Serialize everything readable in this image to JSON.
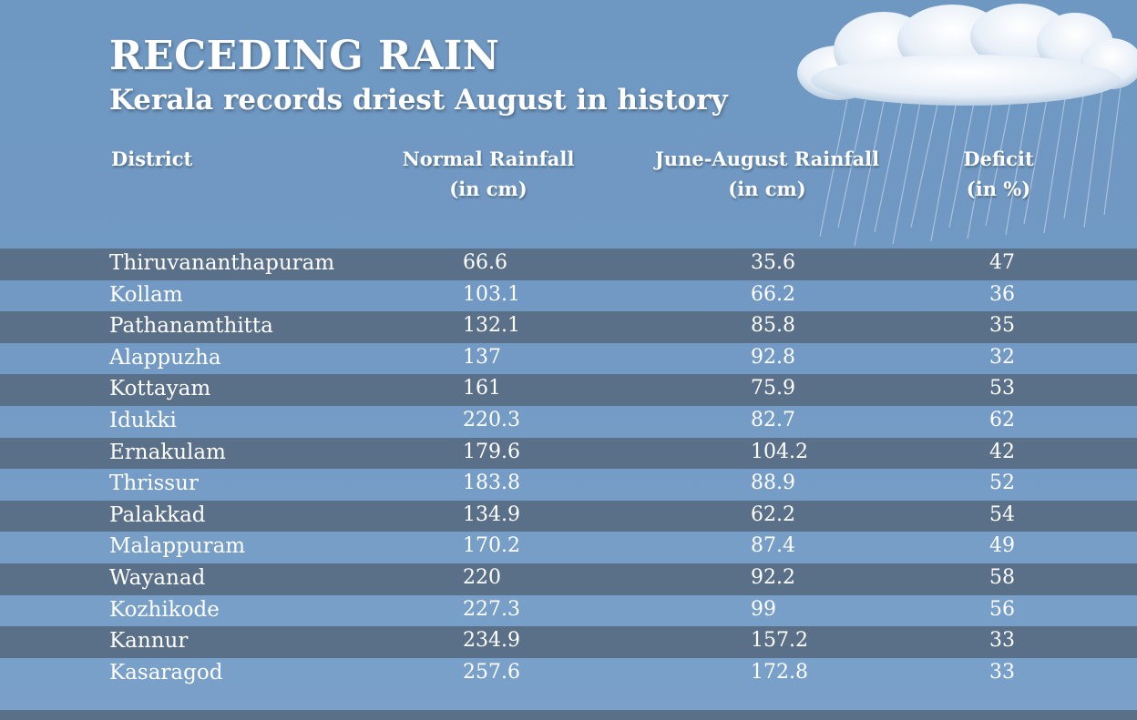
{
  "header": {
    "title": "RECEDING RAIN",
    "subtitle": "Kerala records driest August in history"
  },
  "columns": {
    "district": "District",
    "normal_line1": "Normal Rainfall",
    "normal_line2": "(in cm)",
    "jun_line1": "June-August Rainfall",
    "jun_line2": "(in cm)",
    "deficit_line1": "Deficit",
    "deficit_line2": "(in %)"
  },
  "colors": {
    "background": "#6f98c2",
    "dark_stripe": "#5a7088",
    "text": "#ffffff"
  },
  "chart_data": {
    "type": "table",
    "title": "RECEDING RAIN",
    "subtitle": "Kerala records driest August in history",
    "columns": [
      "District",
      "Normal Rainfall (in cm)",
      "June-August Rainfall (in cm)",
      "Deficit (in %)"
    ],
    "rows": [
      {
        "district": "Thiruvananthapuram",
        "normal": "66.6",
        "jun_aug": "35.6",
        "deficit": "47"
      },
      {
        "district": "Kollam",
        "normal": "103.1",
        "jun_aug": "66.2",
        "deficit": "36"
      },
      {
        "district": "Pathanamthitta",
        "normal": "132.1",
        "jun_aug": "85.8",
        "deficit": "35"
      },
      {
        "district": "Alappuzha",
        "normal": "137",
        "jun_aug": "92.8",
        "deficit": "32"
      },
      {
        "district": "Kottayam",
        "normal": "161",
        "jun_aug": "75.9",
        "deficit": "53"
      },
      {
        "district": "Idukki",
        "normal": "220.3",
        "jun_aug": "82.7",
        "deficit": "62"
      },
      {
        "district": "Ernakulam",
        "normal": "179.6",
        "jun_aug": "104.2",
        "deficit": "42"
      },
      {
        "district": "Thrissur",
        "normal": "183.8",
        "jun_aug": "88.9",
        "deficit": "52"
      },
      {
        "district": "Palakkad",
        "normal": "134.9",
        "jun_aug": "62.2",
        "deficit": "54"
      },
      {
        "district": "Malappuram",
        "normal": "170.2",
        "jun_aug": "87.4",
        "deficit": "49"
      },
      {
        "district": "Wayanad",
        "normal": "220",
        "jun_aug": "92.2",
        "deficit": "58"
      },
      {
        "district": "Kozhikode",
        "normal": "227.3",
        "jun_aug": "99",
        "deficit": "56"
      },
      {
        "district": "Kannur",
        "normal": "234.9",
        "jun_aug": "157.2",
        "deficit": "33"
      },
      {
        "district": "Kasaragod",
        "normal": "257.6",
        "jun_aug": "172.8",
        "deficit": "33"
      }
    ]
  }
}
